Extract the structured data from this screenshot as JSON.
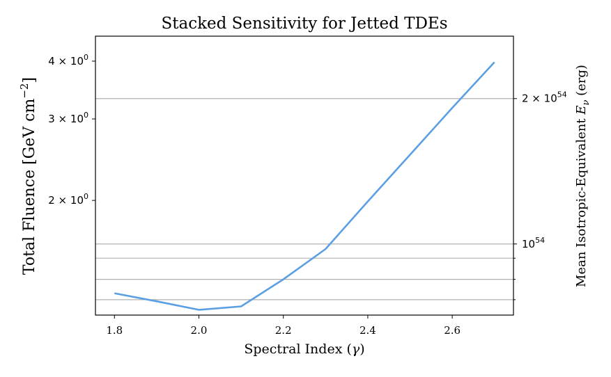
{
  "chart_data": {
    "type": "line",
    "title": "Stacked Sensitivity for Jetted TDEs",
    "xlabel": "Spectral Index (",
    "xlabel_symbol": "γ",
    "xlabel_close": ")",
    "ylabel": "Total Fluence [GeV cm",
    "ylabel_sup": "−2",
    "ylabel_close": "]",
    "ylabel_right": "Mean Isotropic-Equivalent ",
    "ylabel_right_symbol": "E",
    "ylabel_right_sub": "ν",
    "ylabel_right_close": " (erg)",
    "x_scale": "linear",
    "y_scale": "log",
    "xlim": [
      1.755,
      2.745
    ],
    "ylim": [
      1.13,
      4.53
    ],
    "x_ticks": [
      {
        "value": 1.8,
        "label": "1.8"
      },
      {
        "value": 2.0,
        "label": "2.0"
      },
      {
        "value": 2.2,
        "label": "2.2"
      },
      {
        "value": 2.4,
        "label": "2.4"
      },
      {
        "value": 2.6,
        "label": "2.6"
      }
    ],
    "y_ticks_left": [
      {
        "value": 2,
        "mantissa": "2",
        "exponent": "0"
      },
      {
        "value": 3,
        "mantissa": "3",
        "exponent": "0"
      },
      {
        "value": 4,
        "mantissa": "4",
        "exponent": "0"
      }
    ],
    "y_ticks_right": [
      {
        "value": 1.61,
        "mantissa": "",
        "exponent": "54",
        "base": "10"
      },
      {
        "value": 3.32,
        "mantissa": "2",
        "exponent": "54",
        "base": "10"
      }
    ],
    "y_minor_right": [
      1.22,
      1.35,
      1.5
    ],
    "grid": "right-axis horizontal lines",
    "series": [
      {
        "color": "#5b9fe3",
        "x": [
          1.8,
          1.9,
          2.0,
          2.1,
          2.2,
          2.3,
          2.4,
          2.5,
          2.6,
          2.7
        ],
        "y": [
          1.26,
          1.21,
          1.16,
          1.18,
          1.35,
          1.57,
          1.99,
          2.51,
          3.17,
          3.98
        ]
      }
    ]
  }
}
